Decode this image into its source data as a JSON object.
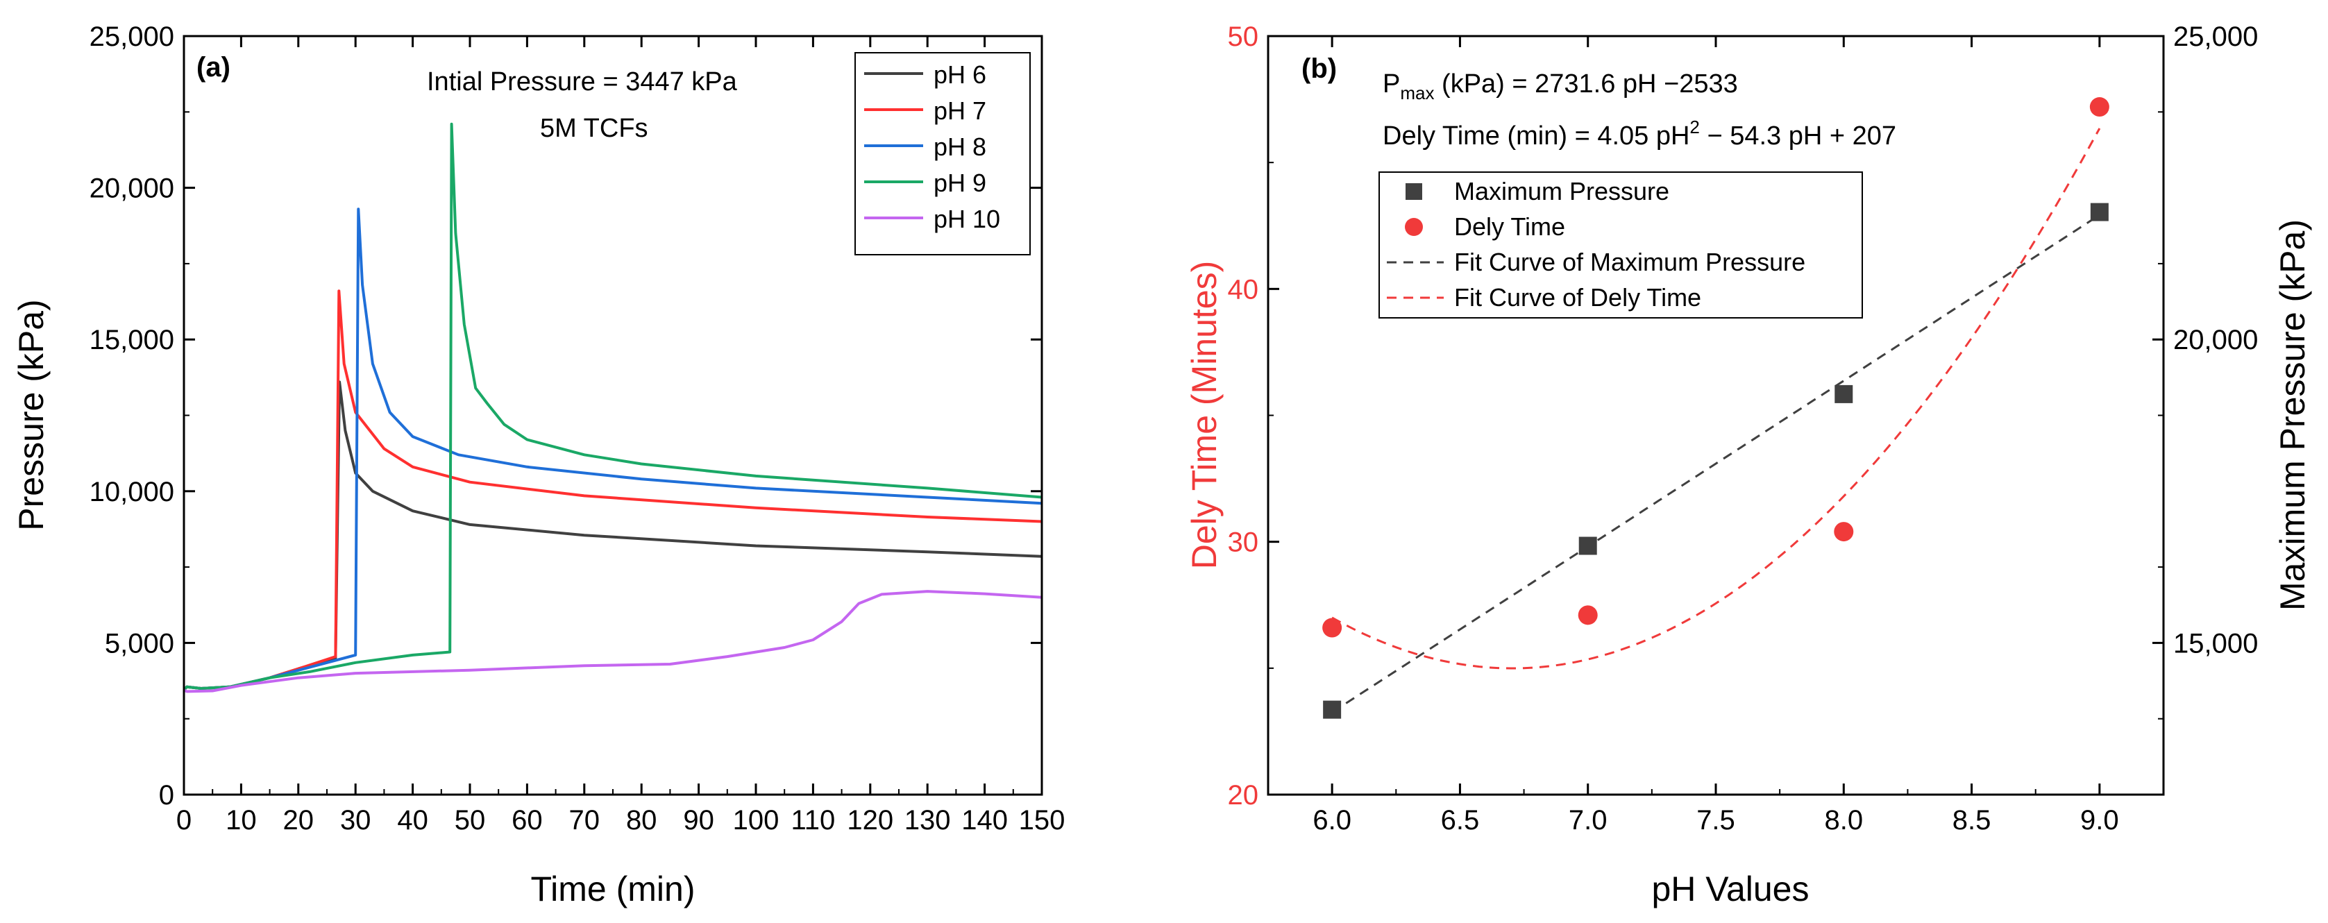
{
  "chart_data": [
    {
      "panel_label": "(a)",
      "type": "line",
      "xlabel": "Time (min)",
      "ylabel": "Pressure (kPa)",
      "xlim": [
        0,
        150
      ],
      "ylim": [
        0,
        25000
      ],
      "xticks": [
        0,
        10,
        20,
        30,
        40,
        50,
        60,
        70,
        80,
        90,
        100,
        110,
        120,
        130,
        140,
        150
      ],
      "yticks": [
        0,
        5000,
        10000,
        15000,
        20000,
        25000
      ],
      "yticklabels": [
        "0",
        "5,000",
        "10,000",
        "15,000",
        "20,000",
        "25,000"
      ],
      "annotations": [
        "Intial Pressure = 3447 kPa",
        "5M TCFs"
      ],
      "legend_position": "top-right",
      "series": [
        {
          "name": "pH 6",
          "color": "#404040",
          "points": [
            [
              0,
              3447
            ],
            [
              0.5,
              3550
            ],
            [
              3,
              3500
            ],
            [
              8,
              3550
            ],
            [
              15,
              3850
            ],
            [
              20,
              4150
            ],
            [
              26.5,
              4500
            ],
            [
              27.2,
              13600
            ],
            [
              28.2,
              12000
            ],
            [
              30,
              10600
            ],
            [
              33,
              10000
            ],
            [
              40,
              9350
            ],
            [
              50,
              8900
            ],
            [
              70,
              8550
            ],
            [
              100,
              8200
            ],
            [
              130,
              8000
            ],
            [
              150,
              7850
            ]
          ]
        },
        {
          "name": "pH 7",
          "color": "#ff3030",
          "points": [
            [
              0,
              3447
            ],
            [
              0.5,
              3550
            ],
            [
              3,
              3500
            ],
            [
              8,
              3550
            ],
            [
              15,
              3850
            ],
            [
              20,
              4150
            ],
            [
              26.5,
              4550
            ],
            [
              27.1,
              16600
            ],
            [
              28,
              14200
            ],
            [
              30,
              12600
            ],
            [
              35,
              11400
            ],
            [
              40,
              10800
            ],
            [
              50,
              10300
            ],
            [
              70,
              9850
            ],
            [
              100,
              9450
            ],
            [
              130,
              9150
            ],
            [
              150,
              9000
            ]
          ]
        },
        {
          "name": "pH 8",
          "color": "#1f6fd8",
          "points": [
            [
              0,
              3447
            ],
            [
              0.5,
              3550
            ],
            [
              3,
              3500
            ],
            [
              8,
              3550
            ],
            [
              15,
              3850
            ],
            [
              22,
              4200
            ],
            [
              30,
              4600
            ],
            [
              30.5,
              19300
            ],
            [
              31.2,
              16800
            ],
            [
              33,
              14200
            ],
            [
              36,
              12600
            ],
            [
              40,
              11800
            ],
            [
              48,
              11200
            ],
            [
              60,
              10800
            ],
            [
              80,
              10400
            ],
            [
              100,
              10100
            ],
            [
              130,
              9800
            ],
            [
              150,
              9600
            ]
          ]
        },
        {
          "name": "pH 9",
          "color": "#1aa866",
          "points": [
            [
              0,
              3447
            ],
            [
              0.5,
              3550
            ],
            [
              3,
              3500
            ],
            [
              8,
              3550
            ],
            [
              15,
              3850
            ],
            [
              22,
              4050
            ],
            [
              30,
              4350
            ],
            [
              40,
              4600
            ],
            [
              46.5,
              4700
            ],
            [
              46.8,
              22100
            ],
            [
              47.5,
              18500
            ],
            [
              49,
              15500
            ],
            [
              51,
              13400
            ],
            [
              53,
              12900
            ],
            [
              56,
              12200
            ],
            [
              60,
              11700
            ],
            [
              70,
              11200
            ],
            [
              80,
              10900
            ],
            [
              100,
              10500
            ],
            [
              130,
              10100
            ],
            [
              150,
              9800
            ]
          ]
        },
        {
          "name": "pH 10",
          "color": "#c466f0",
          "points": [
            [
              0,
              3447
            ],
            [
              0.5,
              3400
            ],
            [
              5,
              3420
            ],
            [
              10,
              3600
            ],
            [
              20,
              3850
            ],
            [
              30,
              4000
            ],
            [
              50,
              4100
            ],
            [
              70,
              4250
            ],
            [
              85,
              4300
            ],
            [
              95,
              4550
            ],
            [
              105,
              4850
            ],
            [
              110,
              5100
            ],
            [
              115,
              5700
            ],
            [
              118,
              6300
            ],
            [
              122,
              6600
            ],
            [
              130,
              6700
            ],
            [
              140,
              6620
            ],
            [
              150,
              6500
            ]
          ]
        }
      ]
    },
    {
      "panel_label": "(b)",
      "type": "scatter",
      "xlabel": "pH Values",
      "ylabel_left": "Dely Time (Minutes)",
      "ylabel_right": "Maximum Pressure (kPa)",
      "xlim": [
        5.75,
        9.25
      ],
      "ylim_left": [
        20,
        50
      ],
      "ylim_right": [
        12500,
        25000
      ],
      "xticks": [
        6.0,
        6.5,
        7.0,
        7.5,
        8.0,
        8.5,
        9.0
      ],
      "xticklabels": [
        "6.0",
        "6.5",
        "7.0",
        "7.5",
        "8.0",
        "8.5",
        "9.0"
      ],
      "yticks_left": [
        20,
        30,
        40,
        50
      ],
      "yticklabels_left": [
        "20",
        "30",
        "40",
        "50"
      ],
      "yticks_right": [
        15000,
        20000,
        25000
      ],
      "yticklabels_right": [
        "15,000",
        "20,000",
        "25,000"
      ],
      "equation_pmax": {
        "prefix": "P",
        "sub": "max",
        "rest": " (kPa) = 2731.6 pH −2533"
      },
      "equation_delay": {
        "prefix": "Dely Time (min) = 4.05 pH",
        "sup": "2",
        "rest": " − 54.3 pH + 207"
      },
      "colors": {
        "pressure": "#404040",
        "delay": "#f03a3a"
      },
      "series": [
        {
          "name": "Maximum Pressure",
          "axis": "right",
          "marker": "square",
          "x": [
            6,
            7,
            8,
            9
          ],
          "y": [
            13900,
            16600,
            19100,
            22100
          ]
        },
        {
          "name": "Dely Time",
          "axis": "left",
          "marker": "circle",
          "x": [
            6,
            7,
            8,
            9
          ],
          "y": [
            26.6,
            27.1,
            30.4,
            47.2
          ]
        },
        {
          "name": "Fit Curve of Maximum Pressure",
          "axis": "right",
          "fit": "linear",
          "coef": {
            "slope": 2731.6,
            "intercept": -2533
          },
          "x_range": [
            6,
            9
          ]
        },
        {
          "name": "Fit Curve of Dely Time",
          "axis": "left",
          "fit": "quadratic",
          "coef": {
            "a": 4.05,
            "b": -54.3,
            "c": 207
          },
          "x_range": [
            6,
            9
          ]
        }
      ]
    }
  ]
}
